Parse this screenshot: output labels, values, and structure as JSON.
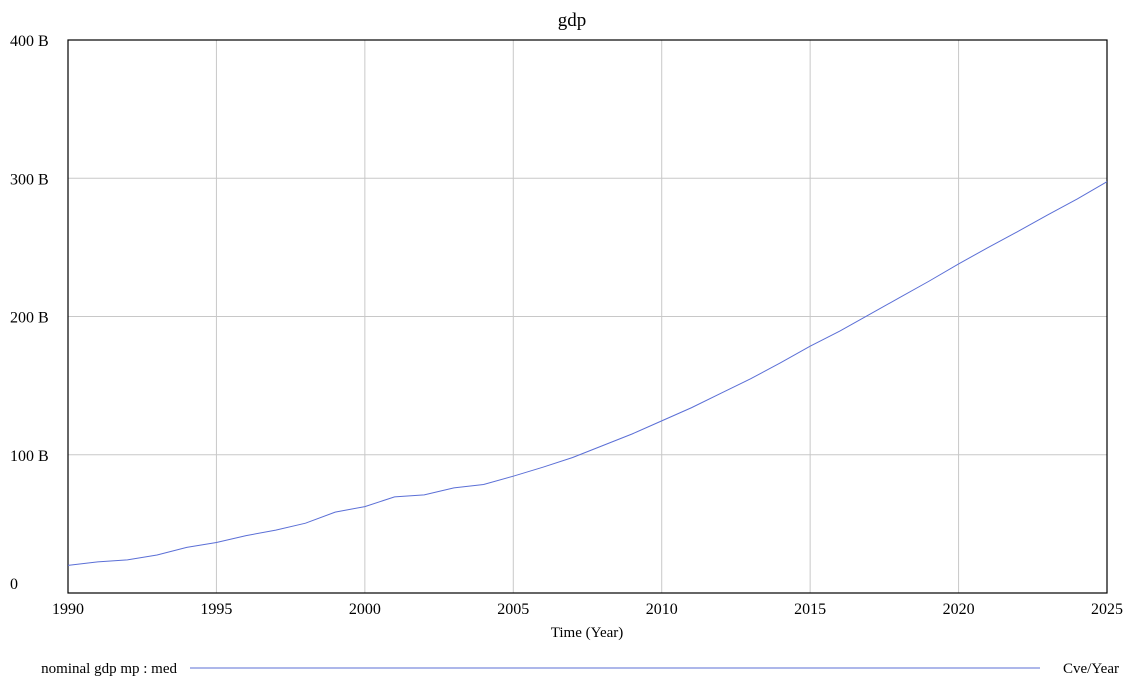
{
  "chart_data": {
    "type": "line",
    "title": "gdp",
    "xlabel": "Time (Year)",
    "ylabel": "",
    "xlim": [
      1990,
      2025
    ],
    "ylim": [
      0,
      400000000000
    ],
    "x_ticks": [
      1990,
      1995,
      2000,
      2005,
      2010,
      2015,
      2020,
      2025
    ],
    "y_ticks": [
      {
        "value": 0,
        "label": "0"
      },
      {
        "value": 100000000000,
        "label": "100 B"
      },
      {
        "value": 200000000000,
        "label": "200 B"
      },
      {
        "value": 300000000000,
        "label": "300 B"
      },
      {
        "value": 400000000000,
        "label": "400 B"
      }
    ],
    "grid": true,
    "legend_placement": "bottom",
    "series": [
      {
        "name": "nominal gdp mp : med",
        "unit": "Cve/Year",
        "color": "#5b6fd6",
        "x": [
          1990,
          1991,
          1992,
          1993,
          1994,
          1995,
          1996,
          1997,
          1998,
          1999,
          2000,
          2001,
          2002,
          2003,
          2004,
          2005,
          2006,
          2007,
          2008,
          2009,
          2010,
          2011,
          2012,
          2013,
          2014,
          2015,
          2016,
          2017,
          2018,
          2019,
          2020,
          2021,
          2022,
          2023,
          2024,
          2025
        ],
        "values": [
          20000000000,
          22500000000,
          24000000000,
          27500000000,
          33000000000,
          36500000000,
          41500000000,
          45500000000,
          50500000000,
          58500000000,
          62500000000,
          69500000000,
          71000000000,
          76000000000,
          78500000000,
          84500000000,
          91000000000,
          98000000000,
          106500000000,
          115000000000,
          124500000000,
          134000000000,
          144500000000,
          155000000000,
          166500000000,
          178500000000,
          189500000000,
          201500000000,
          213500000000,
          225500000000,
          238000000000,
          250000000000,
          261500000000,
          273500000000,
          285000000000,
          297500000000
        ]
      }
    ]
  }
}
